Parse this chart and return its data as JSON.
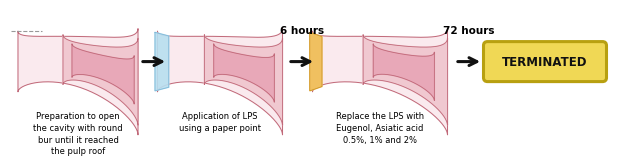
{
  "bg_color": "#ffffff",
  "tooth_outer_color": "#e8a8b8",
  "tooth_mid_color": "#f0c8d0",
  "tooth_inner_color": "#f8dde4",
  "tooth_outline_color": "#c06878",
  "tooth_innermost_color": "#faeaee",
  "lps_color": "#b8dff0",
  "lps_outline_color": "#80b8d8",
  "orange_top_color": "#f0c060",
  "orange_outline_color": "#c89020",
  "dashed_line_color": "#999999",
  "arrow_color": "#111111",
  "terminated_bg": "#f0d855",
  "terminated_border": "#b8a010",
  "terminated_text": "#111111",
  "label1": "Preparation to open\nthe cavity with round\nbur until it reached\nthe pulp roof",
  "label2": "Application of LPS\nusing a paper point",
  "label3": "Replace the LPS with\nEugenol, Asiatic acid\n0.5%, 1% and 2%",
  "time1": "6 hours",
  "time2": "72 hours",
  "terminated_label": "TERMINATED"
}
